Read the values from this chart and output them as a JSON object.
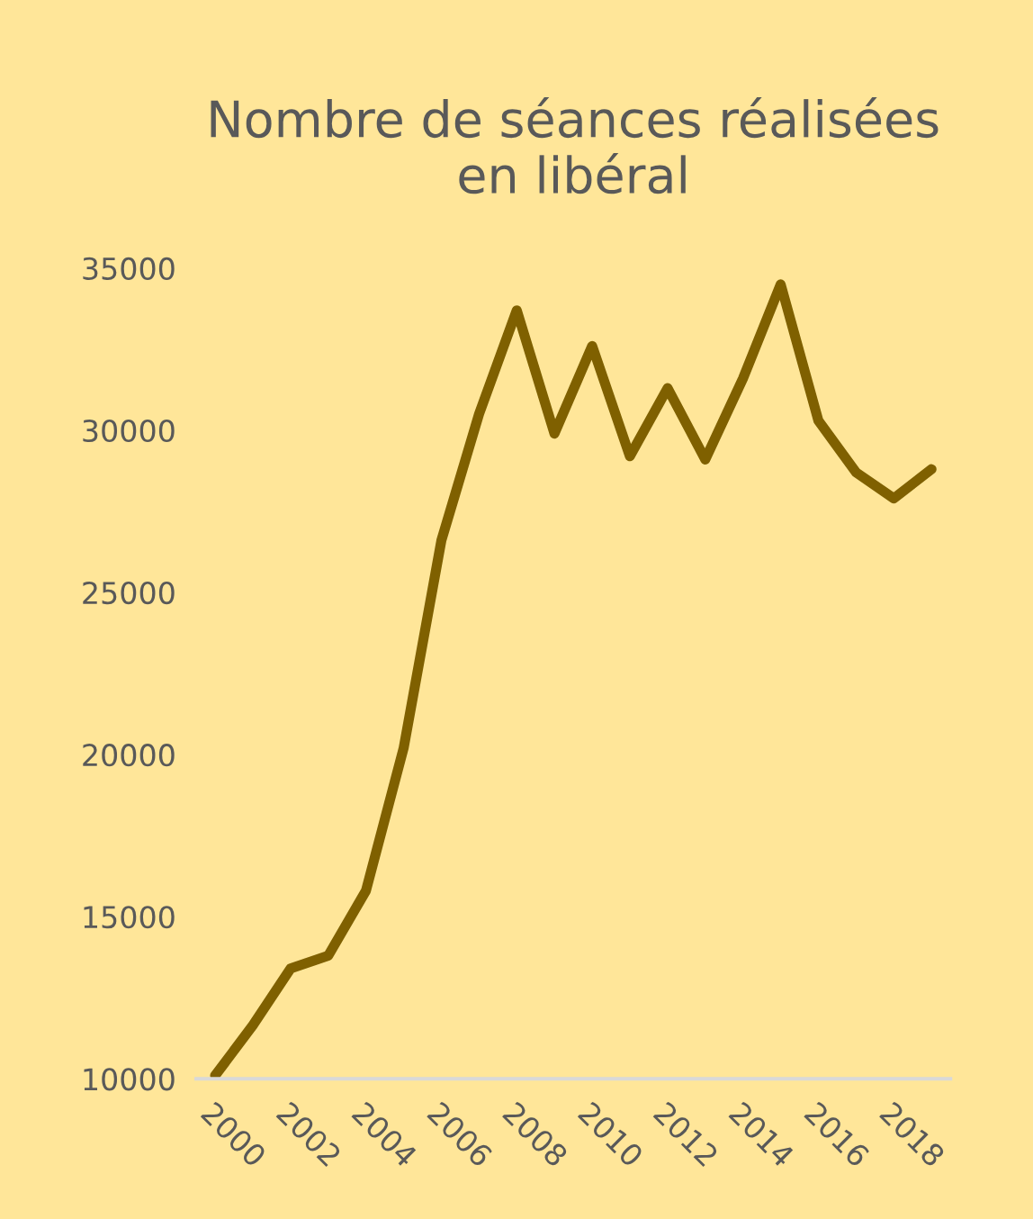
{
  "chart_data": {
    "type": "line",
    "title": "Nombre de séances réalisées\nen libéral",
    "categories": [
      "2000",
      null,
      "2002",
      null,
      "2004",
      null,
      "2006",
      null,
      "2008",
      null,
      "2010",
      null,
      "2012",
      null,
      "2014",
      null,
      "2016",
      null,
      "2018",
      null
    ],
    "series": [
      {
        "color": "#7f6000",
        "values": [
          10100,
          11650,
          13400,
          13800,
          15800,
          20200,
          26600,
          30500,
          33700,
          29900,
          32600,
          29200,
          31300,
          29100,
          31600,
          34500,
          30300,
          28700,
          27900,
          28800
        ]
      }
    ],
    "ylim": [
      10000,
      35000
    ],
    "yticks": [
      10000,
      15000,
      20000,
      25000,
      30000,
      35000
    ],
    "grid": false,
    "marker": "none",
    "line_style": "solid"
  }
}
